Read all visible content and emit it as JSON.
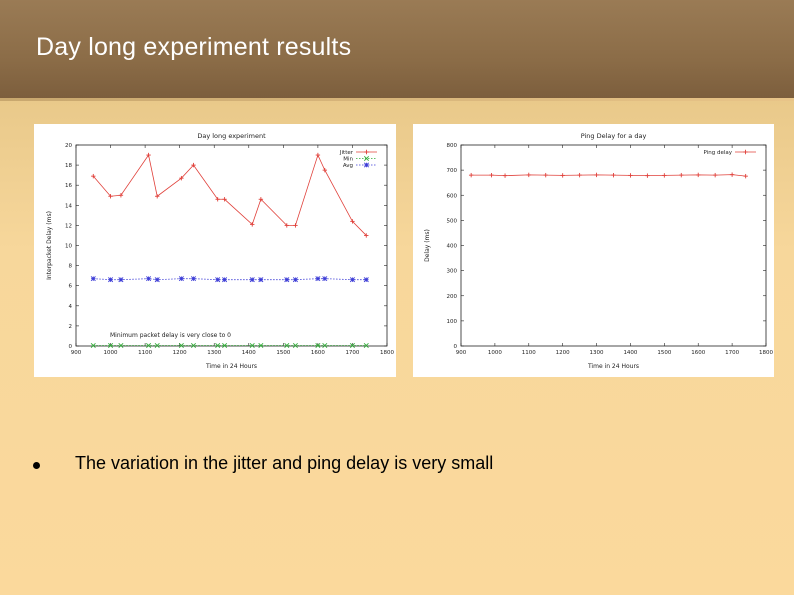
{
  "slide": {
    "title": "Day long experiment results",
    "bullet_text": "The variation in the jitter and ping delay is very small"
  },
  "colors": {
    "title_bar": "#8b6c47",
    "background": "#fbd99c",
    "jitter": "#e0403a",
    "min": "#2faa36",
    "avg": "#3a3ad6",
    "ping": "#e0403a"
  },
  "chart_data": [
    {
      "type": "line",
      "title": "Day long experiment",
      "xlabel": "Time in 24 Hours",
      "ylabel": "Interpacket Delay (ms)",
      "xlim": [
        900,
        1800
      ],
      "ylim": [
        0,
        20
      ],
      "xticks": [
        "900",
        "1000",
        "1100",
        "1200",
        "1300",
        "1400",
        "1500",
        "1600",
        "1700",
        "1800"
      ],
      "yticks": [
        "0",
        "2",
        "4",
        "6",
        "8",
        "10",
        "12",
        "14",
        "16",
        "18",
        "20"
      ],
      "grid": false,
      "legend_position": "top-right",
      "annotation": "Minimum packet delay is very close to 0",
      "x": [
        950,
        1000,
        1030,
        1110,
        1135,
        1205,
        1240,
        1310,
        1330,
        1410,
        1435,
        1510,
        1535,
        1600,
        1620,
        1700,
        1740
      ],
      "series": [
        {
          "name": "Jitter",
          "color": "#e0403a",
          "marker": "+",
          "values": [
            16.9,
            14.9,
            15.0,
            19.0,
            14.9,
            16.7,
            18.0,
            14.6,
            14.6,
            12.1,
            14.6,
            12.0,
            12.0,
            19.0,
            17.5,
            12.4,
            11.0
          ]
        },
        {
          "name": "Min",
          "color": "#2faa36",
          "marker": "x",
          "values": [
            0.05,
            0.05,
            0.05,
            0.05,
            0.05,
            0.05,
            0.05,
            0.05,
            0.05,
            0.05,
            0.05,
            0.05,
            0.05,
            0.05,
            0.05,
            0.05,
            0.05
          ]
        },
        {
          "name": "Avg",
          "color": "#3a3ad6",
          "marker": "*",
          "values": [
            6.7,
            6.6,
            6.6,
            6.7,
            6.6,
            6.7,
            6.7,
            6.6,
            6.6,
            6.6,
            6.6,
            6.6,
            6.6,
            6.7,
            6.7,
            6.6,
            6.6
          ]
        }
      ]
    },
    {
      "type": "line",
      "title": "Ping Delay for a day",
      "xlabel": "Time in 24 Hours",
      "ylabel": "Delay (ms)",
      "xlim": [
        900,
        1800
      ],
      "ylim": [
        0,
        800
      ],
      "xticks": [
        "900",
        "1000",
        "1100",
        "1200",
        "1300",
        "1400",
        "1500",
        "1600",
        "1700",
        "1800"
      ],
      "yticks": [
        "0",
        "100",
        "200",
        "300",
        "400",
        "500",
        "600",
        "700",
        "800"
      ],
      "grid": false,
      "legend_position": "top-right",
      "x": [
        930,
        990,
        1030,
        1100,
        1150,
        1200,
        1250,
        1300,
        1350,
        1400,
        1450,
        1500,
        1550,
        1600,
        1650,
        1700,
        1740
      ],
      "series": [
        {
          "name": "Ping delay",
          "color": "#e0403a",
          "marker": "+",
          "values": [
            680,
            680,
            678,
            681,
            680,
            679,
            680,
            681,
            680,
            679,
            678,
            679,
            680,
            681,
            680,
            682,
            676
          ]
        }
      ]
    }
  ]
}
